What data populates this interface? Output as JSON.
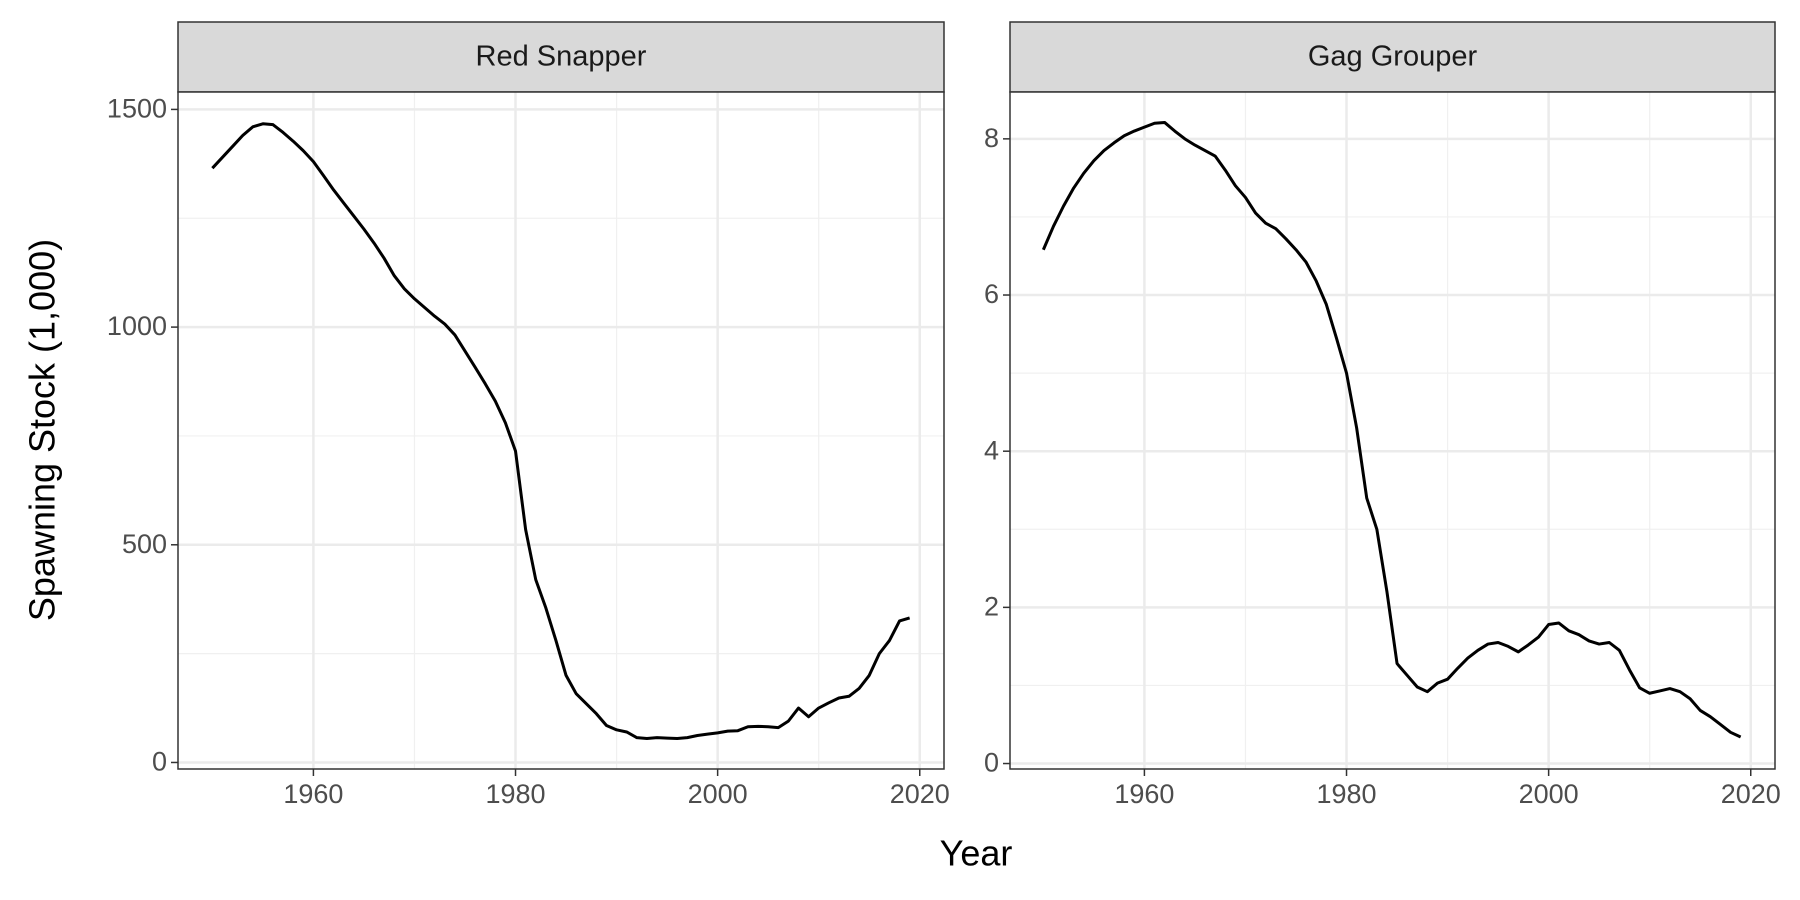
{
  "x_label": "Year",
  "y_label": "Spawning Stock (1,000)",
  "chart_data": [
    {
      "type": "line",
      "title": "Red Snapper",
      "color": "#000000",
      "grid": true,
      "minor_grid": true,
      "xlim": [
        1946.6,
        2022.4
      ],
      "xticks": [
        1960,
        1980,
        2000,
        2020
      ],
      "ylim": [
        -15,
        1540
      ],
      "yticks": [
        0,
        500,
        1000,
        1500
      ],
      "x": [
        1950,
        1951,
        1952,
        1953,
        1954,
        1955,
        1956,
        1957,
        1958,
        1959,
        1960,
        1961,
        1962,
        1963,
        1964,
        1965,
        1966,
        1967,
        1968,
        1969,
        1970,
        1971,
        1972,
        1973,
        1974,
        1975,
        1976,
        1977,
        1978,
        1979,
        1980,
        1981,
        1982,
        1983,
        1984,
        1985,
        1986,
        1987,
        1988,
        1989,
        1990,
        1991,
        1992,
        1993,
        1994,
        1995,
        1996,
        1997,
        1998,
        1999,
        2000,
        2001,
        2002,
        2003,
        2004,
        2005,
        2006,
        2007,
        2008,
        2009,
        2010,
        2011,
        2012,
        2013,
        2014,
        2015,
        2016,
        2017,
        2018,
        2019
      ],
      "values": [
        1365,
        1390,
        1415,
        1440,
        1460,
        1467,
        1465,
        1447,
        1427,
        1405,
        1380,
        1348,
        1315,
        1285,
        1255,
        1225,
        1193,
        1158,
        1118,
        1088,
        1065,
        1045,
        1025,
        1007,
        982,
        945,
        908,
        870,
        830,
        780,
        715,
        535,
        420,
        355,
        280,
        200,
        158,
        135,
        112,
        85,
        75,
        70,
        57,
        55,
        57,
        56,
        55,
        57,
        62,
        65,
        68,
        72,
        73,
        82,
        83,
        82,
        80,
        95,
        125,
        105,
        125,
        137,
        148,
        152,
        170,
        200,
        250,
        280,
        325,
        332
      ]
    },
    {
      "type": "line",
      "title": "Gag Grouper",
      "color": "#000000",
      "grid": true,
      "minor_grid": true,
      "xlim": [
        1946.7,
        2022.4
      ],
      "xticks": [
        1960,
        1980,
        2000,
        2020
      ],
      "ylim": [
        -0.07,
        8.6
      ],
      "yticks": [
        0,
        2,
        4,
        6,
        8
      ],
      "x": [
        1950,
        1951,
        1952,
        1953,
        1954,
        1955,
        1956,
        1957,
        1958,
        1959,
        1960,
        1961,
        1962,
        1963,
        1964,
        1965,
        1966,
        1967,
        1968,
        1969,
        1970,
        1971,
        1972,
        1973,
        1974,
        1975,
        1976,
        1977,
        1978,
        1979,
        1980,
        1981,
        1982,
        1983,
        1984,
        1985,
        1986,
        1987,
        1988,
        1989,
        1990,
        1991,
        1992,
        1993,
        1994,
        1995,
        1996,
        1997,
        1998,
        1999,
        2000,
        2001,
        2002,
        2003,
        2004,
        2005,
        2006,
        2007,
        2008,
        2009,
        2010,
        2011,
        2012,
        2013,
        2014,
        2015,
        2016,
        2017,
        2018,
        2019
      ],
      "values": [
        6.58,
        6.88,
        7.14,
        7.37,
        7.56,
        7.72,
        7.85,
        7.95,
        8.04,
        8.1,
        8.15,
        8.2,
        8.21,
        8.1,
        8.0,
        7.92,
        7.85,
        7.78,
        7.6,
        7.4,
        7.25,
        7.05,
        6.92,
        6.85,
        6.72,
        6.58,
        6.42,
        6.18,
        5.88,
        5.45,
        5.0,
        4.3,
        3.4,
        3.0,
        2.2,
        1.28,
        1.13,
        0.98,
        0.92,
        1.03,
        1.08,
        1.22,
        1.35,
        1.45,
        1.53,
        1.55,
        1.5,
        1.43,
        1.52,
        1.62,
        1.78,
        1.8,
        1.7,
        1.65,
        1.57,
        1.53,
        1.55,
        1.45,
        1.2,
        0.97,
        0.9,
        0.93,
        0.96,
        0.92,
        0.83,
        0.68,
        0.6,
        0.5,
        0.4,
        0.34
      ]
    }
  ]
}
